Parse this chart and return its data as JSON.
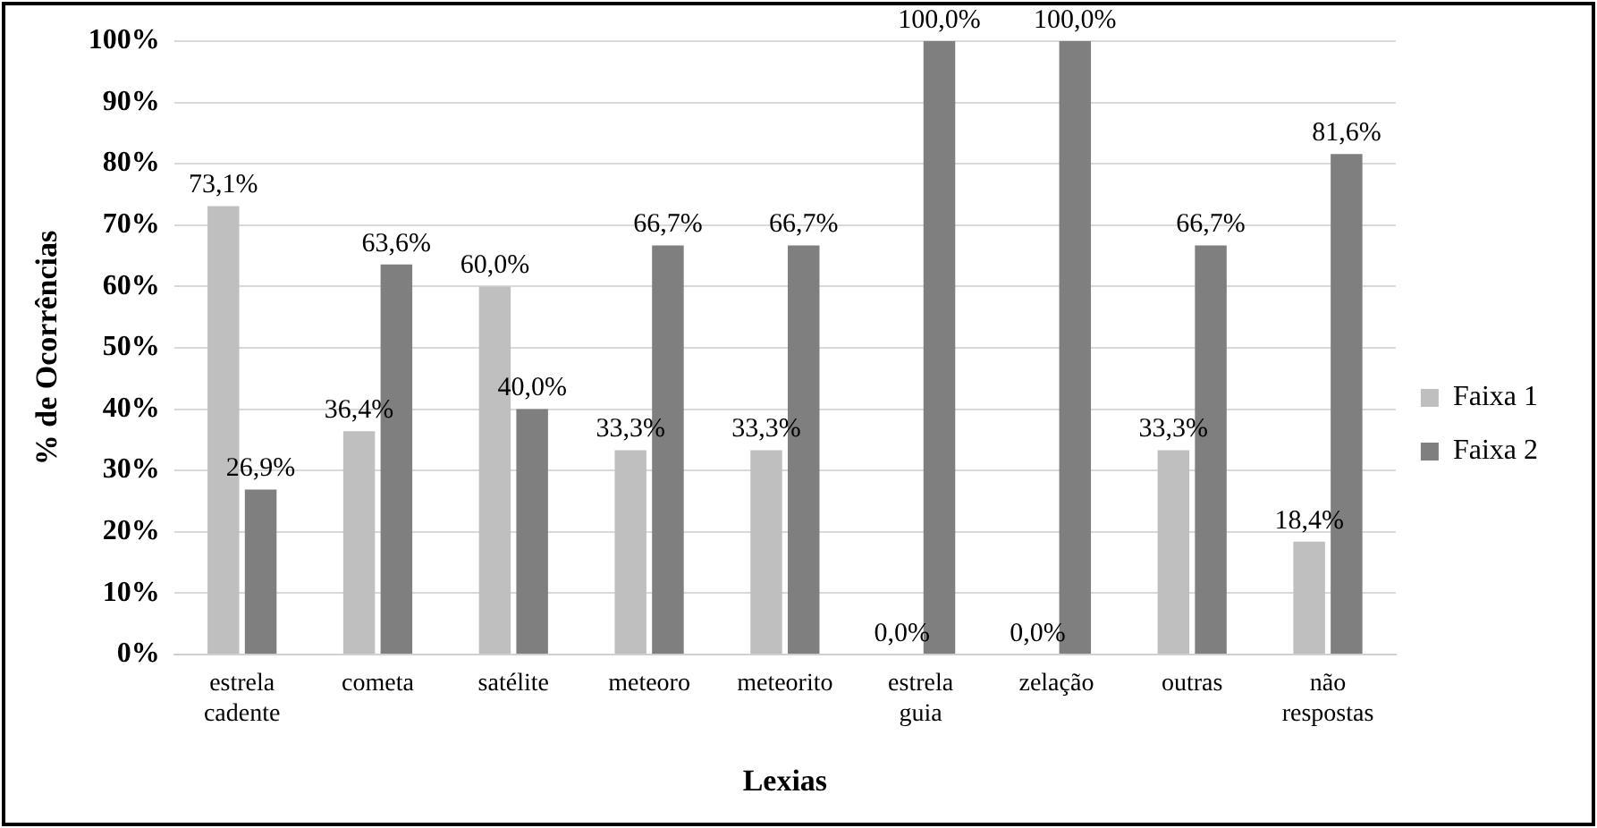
{
  "chart_data": {
    "type": "bar",
    "xlabel": "Lexias",
    "ylabel": "% de Ocorrências",
    "categories": [
      "estrela cadente",
      "cometa",
      "satélite",
      "meteoro",
      "meteorito",
      "estrela guia",
      "zelação",
      "outras",
      "não respostas"
    ],
    "series": [
      {
        "name": "Faixa 1",
        "color": "#bfbfbf",
        "values": [
          73.1,
          36.4,
          60.0,
          33.3,
          33.3,
          0.0,
          0.0,
          33.3,
          18.4
        ],
        "value_labels": [
          "73,1%",
          "36,4%",
          "60,0%",
          "33,3%",
          "33,3%",
          "0,0%",
          "0,0%",
          "33,3%",
          "18,4%"
        ]
      },
      {
        "name": "Faixa 2",
        "color": "#7f7f7f",
        "values": [
          26.9,
          63.6,
          40.0,
          66.7,
          66.7,
          100.0,
          100.0,
          66.7,
          81.6
        ],
        "value_labels": [
          "26,9%",
          "63,6%",
          "40,0%",
          "66,7%",
          "66,7%",
          "100,0%",
          "100,0%",
          "66,7%",
          "81,6%"
        ]
      }
    ],
    "ylim": [
      0,
      100
    ],
    "yticks": [
      {
        "value": 0,
        "label": "0%"
      },
      {
        "value": 10,
        "label": "10%"
      },
      {
        "value": 20,
        "label": "20%"
      },
      {
        "value": 30,
        "label": "30%"
      },
      {
        "value": 40,
        "label": "40%"
      },
      {
        "value": 50,
        "label": "50%"
      },
      {
        "value": 60,
        "label": "60%"
      },
      {
        "value": 70,
        "label": "70%"
      },
      {
        "value": 80,
        "label": "80%"
      },
      {
        "value": 90,
        "label": "90%"
      },
      {
        "value": 100,
        "label": "100%"
      }
    ],
    "grid": "y",
    "legend": "right"
  }
}
